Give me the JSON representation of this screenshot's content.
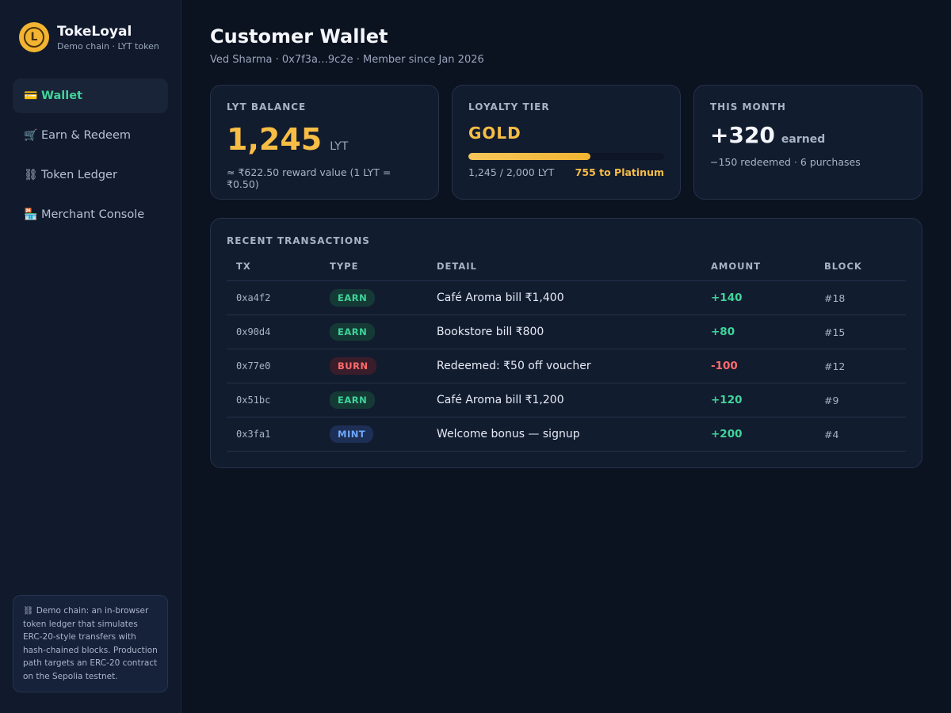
{
  "brand": {
    "logo_letter": "L",
    "name": "TokeLoyal",
    "subtitle": "Demo chain · LYT token"
  },
  "nav": {
    "items": [
      {
        "icon": "💳",
        "icon_name": "credit-card-icon",
        "label": "Wallet",
        "active": true
      },
      {
        "icon": "🛒",
        "icon_name": "cart-icon",
        "label": "Earn & Redeem",
        "active": false
      },
      {
        "icon": "⛓",
        "icon_name": "chain-icon",
        "label": "Token Ledger",
        "active": false
      },
      {
        "icon": "🏪",
        "icon_name": "store-icon",
        "label": "Merchant Console",
        "active": false
      }
    ]
  },
  "note": {
    "icon": "⛓",
    "text": "Demo chain: an in-browser token ledger that simulates ERC-20-style transfers with hash-chained blocks. Production path targets an ERC-20 contract on the Sepolia testnet."
  },
  "header": {
    "title": "Customer Wallet",
    "subtitle": "Ved Sharma · 0x7f3a…9c2e · Member since Jan 2026"
  },
  "balance": {
    "label": "LYT BALANCE",
    "value": "1,245",
    "unit": "LYT",
    "reward": "≈ ₹622.50 reward value (1 LYT = ₹0.50)"
  },
  "tier": {
    "label": "LOYALTY TIER",
    "name": "GOLD",
    "progress_fraction": 0.6225,
    "progress_text": "1,245 / 2,000 LYT",
    "next_text": "755 to Platinum"
  },
  "month": {
    "label": "THIS MONTH",
    "earned_value": "+320",
    "earned_label": "earned",
    "summary": "−150 redeemed · 6 purchases"
  },
  "transactions": {
    "title": "RECENT TRANSACTIONS",
    "columns": [
      "TX",
      "TYPE",
      "DETAIL",
      "AMOUNT",
      "BLOCK"
    ],
    "rows": [
      {
        "tx": "0xa4f2",
        "type": "EARN",
        "detail": "Café Aroma bill ₹1,400",
        "amount": "+140",
        "block": "#18"
      },
      {
        "tx": "0x90d4",
        "type": "EARN",
        "detail": "Bookstore bill ₹800",
        "amount": "+80",
        "block": "#15"
      },
      {
        "tx": "0x77e0",
        "type": "BURN",
        "detail": "Redeemed: ₹50 off voucher",
        "amount": "-100",
        "block": "#12"
      },
      {
        "tx": "0x51bc",
        "type": "EARN",
        "detail": "Café Aroma bill ₹1,200",
        "amount": "+120",
        "block": "#9"
      },
      {
        "tx": "0x3fa1",
        "type": "MINT",
        "detail": "Welcome bonus — signup",
        "amount": "+200",
        "block": "#4"
      }
    ]
  },
  "colors": {
    "accent_green": "#3fd49a",
    "gold": "#f7bd45",
    "burn_red": "#ff6b6b",
    "mint_blue": "#6ea8ff",
    "background": "#0b1220"
  }
}
